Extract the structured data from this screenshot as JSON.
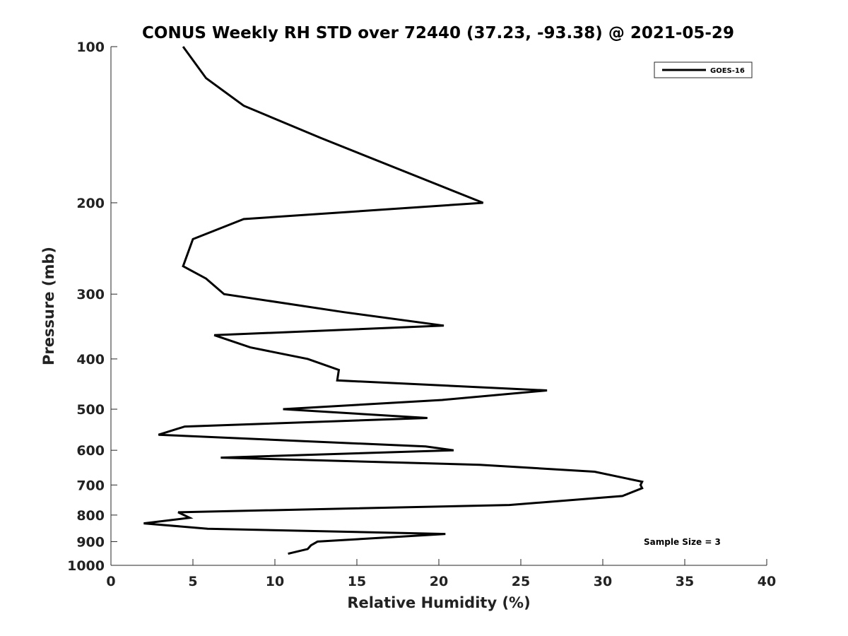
{
  "chart_data": {
    "type": "line",
    "title": "CONUS Weekly RH STD over 72440 (37.23, -93.38) @ 2021-05-29",
    "xlabel": "Relative Humidity (%)",
    "ylabel": "Pressure (mb)",
    "xlim": [
      0,
      40
    ],
    "ylim": [
      100,
      1000
    ],
    "yscale": "log",
    "y_reversed": true,
    "grid": false,
    "legend_position": "top-right",
    "x_ticks": [
      "0",
      "5",
      "10",
      "15",
      "20",
      "25",
      "30",
      "35",
      "40"
    ],
    "y_ticks": [
      "100",
      "200",
      "300",
      "400",
      "500",
      "600",
      "700",
      "800",
      "900",
      "1000"
    ],
    "annotation": "Sample Size = 3",
    "series": [
      {
        "name": "GOES-16",
        "color": "#000000",
        "x": [
          4.4,
          5.8,
          8.1,
          12.8,
          22.7,
          8.1,
          5.0,
          4.4,
          5.8,
          6.9,
          14.2,
          20.3,
          6.3,
          8.5,
          12.0,
          13.9,
          13.8,
          26.6,
          20.2,
          10.5,
          19.3,
          4.5,
          2.9,
          19.2,
          20.9,
          6.7,
          22.5,
          29.5,
          32.4,
          32.3,
          32.4,
          31.2,
          24.3,
          4.1,
          4.8,
          2.0,
          5.9,
          20.4,
          12.6,
          12.2,
          12.0,
          10.8
        ],
        "y": [
          100,
          115,
          130,
          150,
          200,
          215,
          235,
          265,
          280,
          300,
          325,
          345,
          360,
          380,
          400,
          420,
          440,
          460,
          480,
          500,
          520,
          540,
          560,
          590,
          600,
          620,
          640,
          660,
          690,
          700,
          710,
          735,
          765,
          790,
          810,
          830,
          850,
          870,
          900,
          915,
          930,
          950
        ]
      }
    ]
  }
}
